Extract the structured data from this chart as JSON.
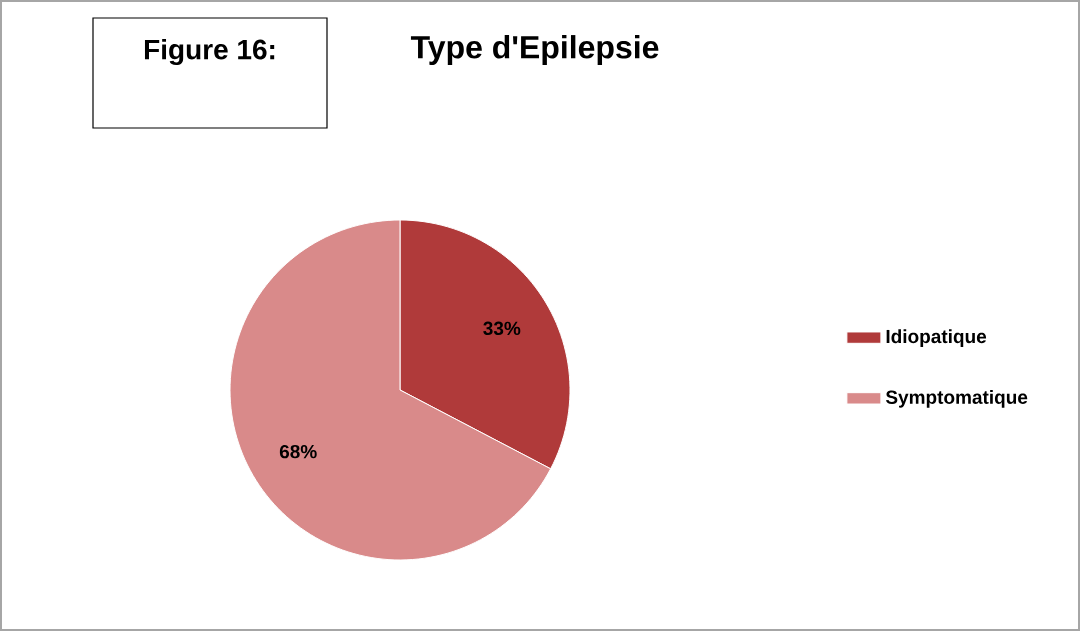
{
  "chart_data": {
    "type": "pie",
    "title": "Type d'Epilepsie",
    "categories": [
      "Idiopatique",
      "Symptomatique"
    ],
    "values": [
      33,
      68
    ],
    "colors": [
      "#b03a3a",
      "#d98a8a"
    ],
    "value_labels": [
      "33%",
      "68%"
    ],
    "legend": "right",
    "annotations": [
      "Figure 16:"
    ]
  }
}
